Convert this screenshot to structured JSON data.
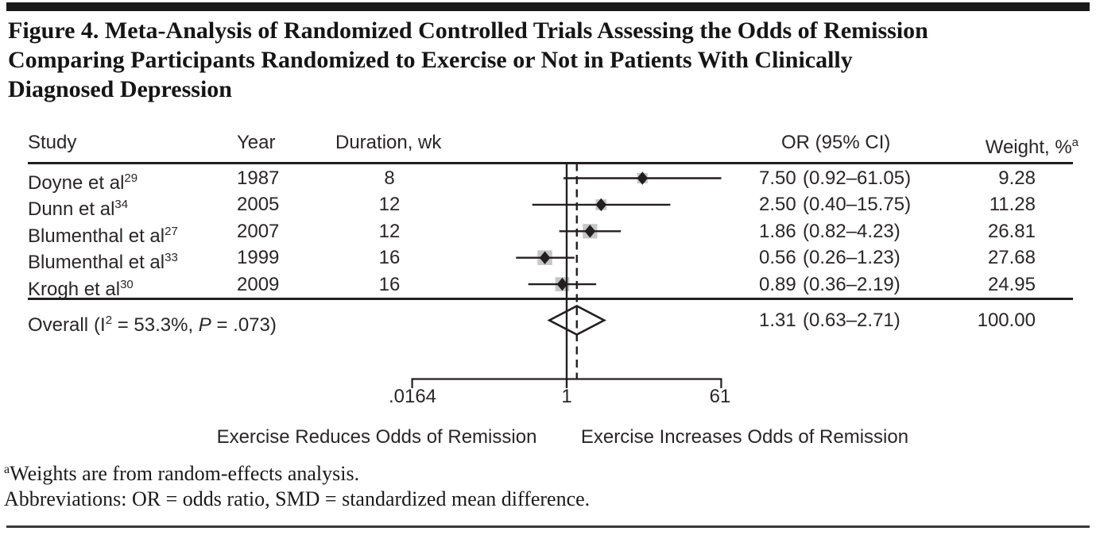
{
  "figure": {
    "title": "Figure 4. Meta-Analysis of Randomized Controlled Trials Assessing the Odds of Remission Comparing Participants Randomized to Exercise or Not in Patients With Clinically Diagnosed Depression"
  },
  "table": {
    "headers": {
      "study": "Study",
      "year": "Year",
      "duration": "Duration, wk",
      "or_ci": "OR (95% CI)",
      "weight": "Weight, %",
      "weight_sup": "a"
    }
  },
  "chart_data": {
    "type": "forest",
    "x_scale": "log",
    "axis": {
      "tick_labels": [
        ".0164",
        "1",
        "61"
      ],
      "tick_values": [
        0.0164,
        1,
        61
      ],
      "null_value": 1
    },
    "rows": [
      {
        "study": "Doyne et al",
        "ref": "29",
        "year": "1987",
        "duration_wk": "8",
        "or": 7.5,
        "ci_low": 0.92,
        "ci_high": 61.05,
        "or_text": "7.50",
        "ci_text": "(0.92–61.05)",
        "weight": 9.28,
        "weight_text": "9.28"
      },
      {
        "study": "Dunn et al",
        "ref": "34",
        "year": "2005",
        "duration_wk": "12",
        "or": 2.5,
        "ci_low": 0.4,
        "ci_high": 15.75,
        "or_text": "2.50",
        "ci_text": "(0.40–15.75)",
        "weight": 11.28,
        "weight_text": "11.28"
      },
      {
        "study": "Blumenthal et al",
        "ref": "27",
        "year": "2007",
        "duration_wk": "12",
        "or": 1.86,
        "ci_low": 0.82,
        "ci_high": 4.23,
        "or_text": "1.86",
        "ci_text": "(0.82–4.23)",
        "weight": 26.81,
        "weight_text": "26.81"
      },
      {
        "study": "Blumenthal et al",
        "ref": "33",
        "year": "1999",
        "duration_wk": "16",
        "or": 0.56,
        "ci_low": 0.26,
        "ci_high": 1.23,
        "or_text": "0.56",
        "ci_text": "(0.26–1.23)",
        "weight": 27.68,
        "weight_text": "27.68"
      },
      {
        "study": "Krogh et al",
        "ref": "30",
        "year": "2009",
        "duration_wk": "16",
        "or": 0.89,
        "ci_low": 0.36,
        "ci_high": 2.19,
        "or_text": "0.89",
        "ci_text": "(0.36–2.19)",
        "weight": 24.95,
        "weight_text": "24.95"
      }
    ],
    "overall": {
      "label_pre": "Overall",
      "label_open": "(I",
      "label_sup": "2",
      "label_mid": " = 53.3%, ",
      "label_p": "P",
      "label_post": " = .073)",
      "or": 1.31,
      "ci_low": 0.63,
      "ci_high": 2.71,
      "or_text": "1.31",
      "ci_text": "(0.63–2.71)",
      "weight_text": "100.00",
      "i_squared": "53.3%",
      "p_value": ".073"
    },
    "direction_labels": {
      "left": "Exercise Reduces Odds of Remission",
      "right": "Exercise Increases Odds of Remission"
    }
  },
  "footnotes": {
    "marker": "a",
    "weights_note": "Weights are from random-effects analysis.",
    "abbreviations": "Abbreviations: OR = odds ratio, SMD = standardized mean difference."
  },
  "colors": {
    "line": "#231f20",
    "weight_box": "#c6c6c6",
    "topbar": "#1a1a1a"
  }
}
